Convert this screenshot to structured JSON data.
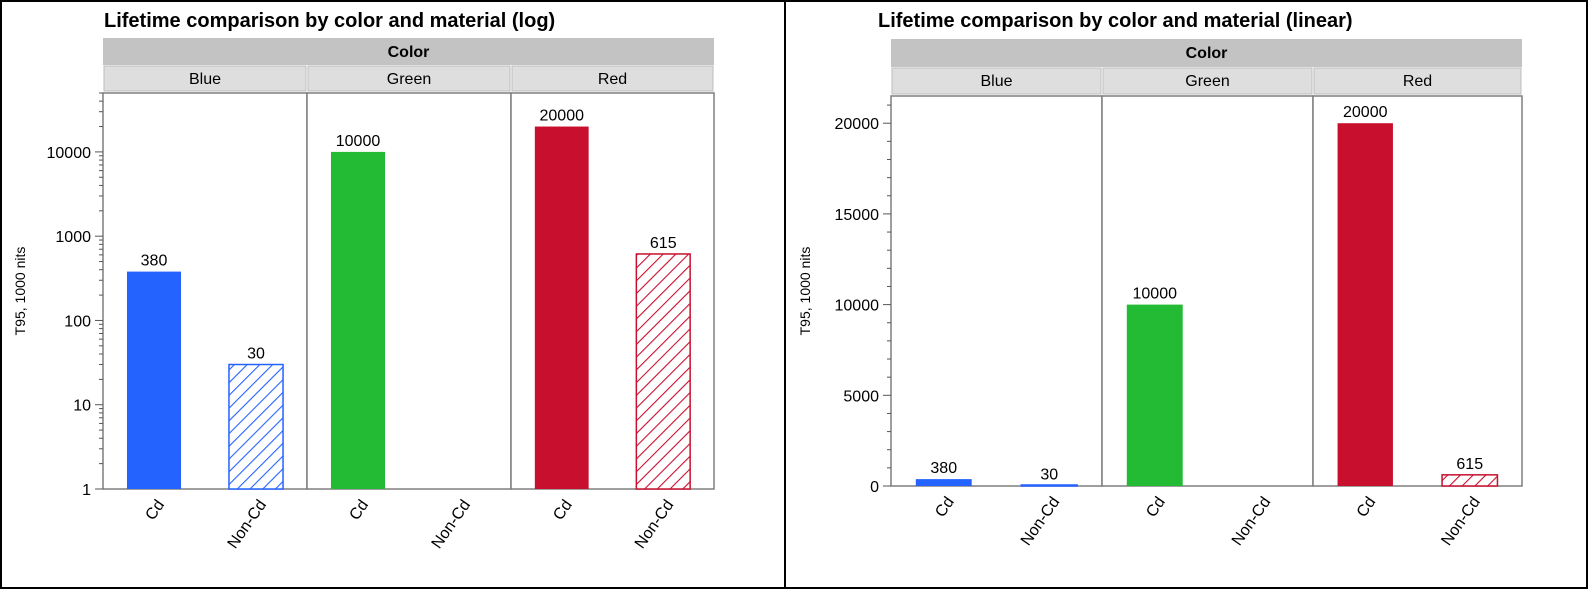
{
  "chart_data": [
    {
      "type": "bar",
      "title": "Lifetime comparison by color and material (log)",
      "ylabel": "T95, 1000 nits",
      "xlabel": "",
      "yscale": "log",
      "ylim": [
        1,
        50000
      ],
      "ytick_labels": [
        "1",
        "10",
        "100",
        "1000",
        "10000"
      ],
      "panel_group_label": "Color",
      "panels": [
        "Blue",
        "Green",
        "Red"
      ],
      "categories": [
        "Cd",
        "Non-Cd"
      ],
      "values": {
        "Blue": [
          380,
          30
        ],
        "Green": [
          10000,
          null
        ],
        "Red": [
          20000,
          615
        ]
      },
      "data_labels": {
        "Blue": [
          "380",
          "30"
        ],
        "Green": [
          "10000",
          ""
        ],
        "Red": [
          "20000",
          "615"
        ]
      },
      "colors": {
        "Blue": "#2563ff",
        "Green": "#22bb33",
        "Red": "#c8102e"
      },
      "styles": {
        "Cd": "solid",
        "Non-Cd": "hatched"
      },
      "grid": false,
      "legend": "none"
    },
    {
      "type": "bar",
      "title": "Lifetime comparison by color and material (linear)",
      "ylabel": "T95, 1000 nits",
      "xlabel": "",
      "yscale": "linear",
      "ylim": [
        0,
        21500
      ],
      "ytick_labels": [
        "0",
        "5000",
        "10000",
        "15000",
        "20000"
      ],
      "panel_group_label": "Color",
      "panels": [
        "Blue",
        "Green",
        "Red"
      ],
      "categories": [
        "Cd",
        "Non-Cd"
      ],
      "values": {
        "Blue": [
          380,
          30
        ],
        "Green": [
          10000,
          null
        ],
        "Red": [
          20000,
          615
        ]
      },
      "data_labels": {
        "Blue": [
          "380",
          "30"
        ],
        "Green": [
          "10000",
          ""
        ],
        "Red": [
          "20000",
          "615"
        ]
      },
      "colors": {
        "Blue": "#2563ff",
        "Green": "#22bb33",
        "Red": "#c8102e"
      },
      "styles": {
        "Cd": "solid",
        "Non-Cd": "hatched"
      },
      "grid": false,
      "legend": "none"
    }
  ]
}
